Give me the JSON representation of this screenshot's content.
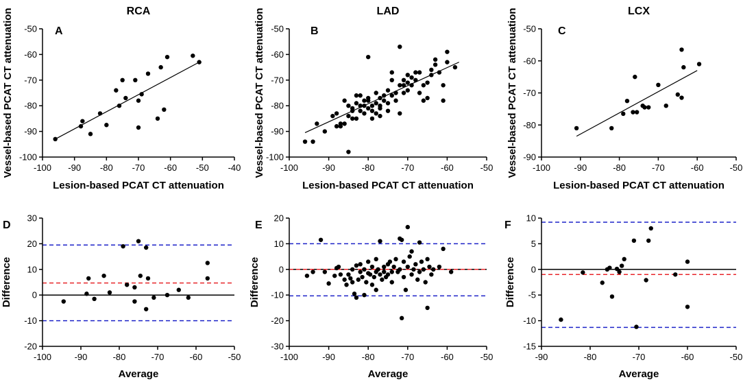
{
  "chart_data": [
    {
      "id": "A",
      "type": "scatter",
      "panel_letter": "A",
      "title": "RCA",
      "xlabel": "Lesion-based PCAT CT attenuation",
      "ylabel": "Vessel-based PCAT CT attenuation",
      "xlim": [
        -100,
        -40
      ],
      "ylim": [
        -100,
        -50
      ],
      "xticks": [
        -100,
        -90,
        -80,
        -70,
        -60,
        -50,
        -40
      ],
      "yticks": [
        -100,
        -90,
        -80,
        -70,
        -60,
        -50
      ],
      "points": [
        [
          -96,
          -93
        ],
        [
          -88,
          -88
        ],
        [
          -87.5,
          -86
        ],
        [
          -85,
          -91
        ],
        [
          -82,
          -83
        ],
        [
          -80,
          -87.5
        ],
        [
          -77,
          -74
        ],
        [
          -76,
          -80
        ],
        [
          -75,
          -70
        ],
        [
          -74,
          -77
        ],
        [
          -71,
          -70
        ],
        [
          -70,
          -78
        ],
        [
          -70,
          -88.5
        ],
        [
          -69,
          -75.5
        ],
        [
          -67,
          -67.5
        ],
        [
          -64,
          -85
        ],
        [
          -63,
          -65
        ],
        [
          -62,
          -81.5
        ],
        [
          -61,
          -61
        ],
        [
          -53,
          -60.5
        ],
        [
          -51,
          -63
        ]
      ],
      "fit_line": [
        [
          -96,
          -93
        ],
        [
          -51,
          -63
        ]
      ]
    },
    {
      "id": "B",
      "type": "scatter",
      "panel_letter": "B",
      "title": "LAD",
      "xlabel": "Lesion-based PCAT CT attenuation",
      "ylabel": "Vessel-based PCAT CT attenuation",
      "xlim": [
        -100,
        -50
      ],
      "ylim": [
        -100,
        -50
      ],
      "xticks": [
        -100,
        -90,
        -80,
        -70,
        -60,
        -50
      ],
      "yticks": [
        -100,
        -90,
        -80,
        -70,
        -60,
        -50
      ],
      "points": [
        [
          -96,
          -94
        ],
        [
          -94,
          -94
        ],
        [
          -93,
          -87
        ],
        [
          -91,
          -90
        ],
        [
          -89,
          -84
        ],
        [
          -88,
          -83
        ],
        [
          -88,
          -88
        ],
        [
          -87,
          -87
        ],
        [
          -87,
          -88
        ],
        [
          -86,
          -87
        ],
        [
          -86,
          -78
        ],
        [
          -85,
          -98
        ],
        [
          -85,
          -80
        ],
        [
          -85,
          -84
        ],
        [
          -84,
          -85
        ],
        [
          -84,
          -82
        ],
        [
          -84,
          -81
        ],
        [
          -83,
          -85
        ],
        [
          -83,
          -79
        ],
        [
          -83,
          -76
        ],
        [
          -82,
          -82
        ],
        [
          -82,
          -76
        ],
        [
          -82,
          -80
        ],
        [
          -81,
          -80
        ],
        [
          -81,
          -83
        ],
        [
          -81,
          -78
        ],
        [
          -80,
          -81
        ],
        [
          -80,
          -78
        ],
        [
          -80,
          -61
        ],
        [
          -80,
          -77
        ],
        [
          -79,
          -85
        ],
        [
          -79,
          -80
        ],
        [
          -79,
          -82
        ],
        [
          -78,
          -79
        ],
        [
          -78,
          -83
        ],
        [
          -78,
          -75
        ],
        [
          -77,
          -80
        ],
        [
          -77,
          -77
        ],
        [
          -77,
          -81
        ],
        [
          -77,
          -84
        ],
        [
          -76,
          -76
        ],
        [
          -76,
          -78
        ],
        [
          -75,
          -74
        ],
        [
          -75,
          -82
        ],
        [
          -75,
          -79
        ],
        [
          -74,
          -76
        ],
        [
          -74,
          -70
        ],
        [
          -74,
          -67
        ],
        [
          -73,
          -75
        ],
        [
          -73,
          -78
        ],
        [
          -72,
          -72
        ],
        [
          -72,
          -57
        ],
        [
          -72,
          -83
        ],
        [
          -71,
          -72
        ],
        [
          -71,
          -70
        ],
        [
          -71,
          -75
        ],
        [
          -70,
          -74
        ],
        [
          -70,
          -68
        ],
        [
          -70,
          -71
        ],
        [
          -69,
          -69
        ],
        [
          -69,
          -72
        ],
        [
          -68,
          -67
        ],
        [
          -68,
          -70
        ],
        [
          -67,
          -75
        ],
        [
          -67,
          -67
        ],
        [
          -66,
          -78
        ],
        [
          -66,
          -72
        ],
        [
          -65,
          -77
        ],
        [
          -65,
          -71
        ],
        [
          -64,
          -66
        ],
        [
          -64,
          -68
        ],
        [
          -63,
          -64
        ],
        [
          -63,
          -62
        ],
        [
          -62,
          -67
        ],
        [
          -61,
          -72
        ],
        [
          -61,
          -78
        ],
        [
          -60,
          -63
        ],
        [
          -60,
          -59
        ],
        [
          -58,
          -65
        ]
      ],
      "fit_line": [
        [
          -96,
          -90.5
        ],
        [
          -57,
          -63
        ]
      ]
    },
    {
      "id": "C",
      "type": "scatter",
      "panel_letter": "C",
      "title": "LCX",
      "xlabel": "Lesion-based PCAT CT attenuation",
      "ylabel": "Vessel-based PCAT CT attenuation",
      "xlim": [
        -100,
        -50
      ],
      "ylim": [
        -90,
        -50
      ],
      "xticks": [
        -100,
        -90,
        -80,
        -70,
        -60,
        -50
      ],
      "yticks": [
        -90,
        -80,
        -70,
        -60,
        -50
      ],
      "points": [
        [
          -91,
          -81
        ],
        [
          -82,
          -81
        ],
        [
          -79,
          -76.5
        ],
        [
          -78,
          -72.5
        ],
        [
          -76.5,
          -76
        ],
        [
          -76,
          -65
        ],
        [
          -75.5,
          -76
        ],
        [
          -74,
          -74
        ],
        [
          -73.5,
          -74.5
        ],
        [
          -72.5,
          -74.5
        ],
        [
          -70,
          -67.5
        ],
        [
          -68,
          -74
        ],
        [
          -65,
          -70.5
        ],
        [
          -64,
          -71.5
        ],
        [
          -64,
          -56.5
        ],
        [
          -63.5,
          -62
        ],
        [
          -59.5,
          -61
        ]
      ],
      "fit_line": [
        [
          -91,
          -83.5
        ],
        [
          -60,
          -63
        ]
      ]
    },
    {
      "id": "D",
      "type": "scatter",
      "panel_letter": "D",
      "xlabel": "Average",
      "ylabel": "Difference",
      "xlim": [
        -100,
        -50
      ],
      "ylim": [
        -20,
        30
      ],
      "xticks": [
        -100,
        -90,
        -80,
        -70,
        -60,
        -50
      ],
      "yticks": [
        -20,
        -10,
        0,
        10,
        20,
        30
      ],
      "reference_lines": {
        "zero": 0,
        "mean": 4.7,
        "upper_loa": 19.5,
        "lower_loa": -10
      },
      "points": [
        [
          -94.5,
          -2.5
        ],
        [
          -88.5,
          0.5
        ],
        [
          -88,
          6.5
        ],
        [
          -86.5,
          -1.5
        ],
        [
          -84,
          7.5
        ],
        [
          -82.5,
          1
        ],
        [
          -79,
          19
        ],
        [
          -78,
          4
        ],
        [
          -76,
          3
        ],
        [
          -76,
          -2.5
        ],
        [
          -75,
          21
        ],
        [
          -74.5,
          7.5
        ],
        [
          -73,
          18.5
        ],
        [
          -73,
          -5.5
        ],
        [
          -72.5,
          6.5
        ],
        [
          -71,
          -1
        ],
        [
          -67.5,
          0
        ],
        [
          -64.5,
          2
        ],
        [
          -62,
          -1
        ],
        [
          -57,
          12.5
        ],
        [
          -57,
          6.5
        ]
      ]
    },
    {
      "id": "E",
      "type": "scatter",
      "panel_letter": "E",
      "xlabel": "Average",
      "ylabel": "Difference",
      "xlim": [
        -100,
        -50
      ],
      "ylim": [
        -30,
        20
      ],
      "xticks": [
        -100,
        -90,
        -80,
        -70,
        -60,
        -50
      ],
      "yticks": [
        -30,
        -20,
        -10,
        0,
        10,
        20
      ],
      "reference_lines": {
        "zero": 0,
        "mean": 0,
        "upper_loa": 10,
        "lower_loa": -10.3
      },
      "points": [
        [
          -95.5,
          -2.5
        ],
        [
          -94,
          -1
        ],
        [
          -92,
          11.5
        ],
        [
          -91,
          -1
        ],
        [
          -90,
          -5.5
        ],
        [
          -88.5,
          -2.5
        ],
        [
          -88,
          0.5
        ],
        [
          -87.5,
          1
        ],
        [
          -87,
          -2
        ],
        [
          -86,
          -4
        ],
        [
          -85.5,
          -6
        ],
        [
          -85,
          -2
        ],
        [
          -84.5,
          -3.5
        ],
        [
          -84,
          0
        ],
        [
          -84,
          -5
        ],
        [
          -83.5,
          -9.5
        ],
        [
          -83,
          -11
        ],
        [
          -83,
          1.5
        ],
        [
          -82.5,
          -4
        ],
        [
          -82,
          -1
        ],
        [
          -82,
          2
        ],
        [
          -81.5,
          -3
        ],
        [
          -81,
          -10
        ],
        [
          -81,
          0
        ],
        [
          -80.5,
          -5
        ],
        [
          -80,
          -1.5
        ],
        [
          -80,
          3
        ],
        [
          -79.5,
          -2
        ],
        [
          -79,
          -6
        ],
        [
          -79,
          1
        ],
        [
          -78.5,
          -3
        ],
        [
          -78,
          -1
        ],
        [
          -78,
          4
        ],
        [
          -78,
          -8
        ],
        [
          -77.5,
          0
        ],
        [
          -77,
          -2
        ],
        [
          -77,
          11
        ],
        [
          -76.5,
          -4
        ],
        [
          -76,
          1
        ],
        [
          -76,
          -1
        ],
        [
          -75.5,
          -3
        ],
        [
          -75,
          2
        ],
        [
          -75,
          -2
        ],
        [
          -74.5,
          3
        ],
        [
          -74,
          -1
        ],
        [
          -74,
          -5
        ],
        [
          -73.5,
          1
        ],
        [
          -73,
          4
        ],
        [
          -72.5,
          -1
        ],
        [
          -72,
          0
        ],
        [
          -72,
          12
        ],
        [
          -71.5,
          11.5
        ],
        [
          -71.5,
          -19
        ],
        [
          -71,
          3
        ],
        [
          -71,
          -3
        ],
        [
          -70.5,
          -8
        ],
        [
          -70,
          16.5
        ],
        [
          -70,
          1
        ],
        [
          -69.5,
          5
        ],
        [
          -69,
          -2
        ],
        [
          -69,
          7
        ],
        [
          -68.5,
          0
        ],
        [
          -68,
          2
        ],
        [
          -67.5,
          -4
        ],
        [
          -67,
          10.5
        ],
        [
          -67,
          -1
        ],
        [
          -66.5,
          3
        ],
        [
          -66,
          0
        ],
        [
          -65.5,
          -5
        ],
        [
          -65,
          4
        ],
        [
          -65,
          -15
        ],
        [
          -64.5,
          1
        ],
        [
          -64,
          -2
        ],
        [
          -63.5,
          0
        ],
        [
          -62,
          1
        ],
        [
          -61,
          8
        ],
        [
          -59,
          -1
        ]
      ]
    },
    {
      "id": "F",
      "type": "scatter",
      "panel_letter": "F",
      "xlabel": "Average",
      "ylabel": "Difference",
      "xlim": [
        -90,
        -50
      ],
      "ylim": [
        -15,
        10
      ],
      "xticks": [
        -90,
        -80,
        -70,
        -60,
        -50
      ],
      "yticks": [
        -15,
        -10,
        -5,
        0,
        5,
        10
      ],
      "reference_lines": {
        "zero": 0,
        "mean": -1,
        "upper_loa": 9.2,
        "lower_loa": -11.3
      },
      "points": [
        [
          -86,
          -9.8
        ],
        [
          -81.5,
          -0.6
        ],
        [
          -77.5,
          -2.6
        ],
        [
          -76.5,
          0
        ],
        [
          -76,
          0.3
        ],
        [
          -75.5,
          -5.3
        ],
        [
          -74.5,
          0.1
        ],
        [
          -74,
          -0.5
        ],
        [
          -73.5,
          0.7
        ],
        [
          -73,
          2
        ],
        [
          -71,
          5.6
        ],
        [
          -70.5,
          -11.2
        ],
        [
          -68.5,
          -2.1
        ],
        [
          -68,
          5.6
        ],
        [
          -67.5,
          8
        ],
        [
          -62.5,
          -1
        ],
        [
          -60,
          1.5
        ],
        [
          -60,
          -7.3
        ]
      ]
    }
  ]
}
